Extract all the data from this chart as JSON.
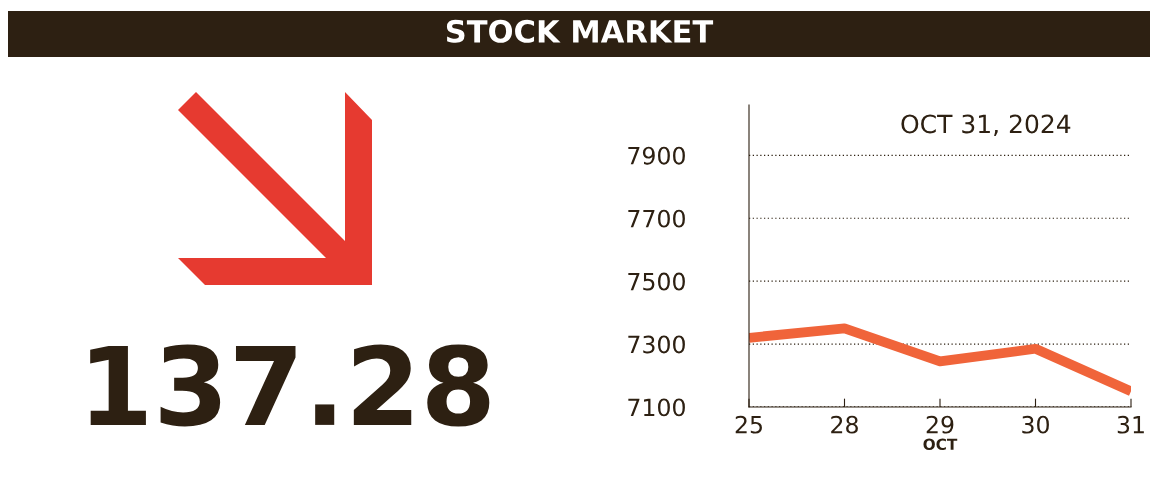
{
  "chart_data": {
    "type": "line",
    "title": "STOCK MARKET",
    "subtitle": "OCT 31, 2024",
    "xlabel": "OCT",
    "categories": [
      "25",
      "28",
      "29",
      "30",
      "31"
    ],
    "series": [
      {
        "color": "#f0643a",
        "values": [
          7320,
          7350,
          7245,
          7285,
          7150
        ]
      }
    ],
    "ylim": [
      7100,
      8060
    ],
    "yticks": [
      7100,
      7300,
      7500,
      7700,
      7900
    ],
    "grid": "y",
    "annotations": [
      "137.28"
    ]
  }
}
